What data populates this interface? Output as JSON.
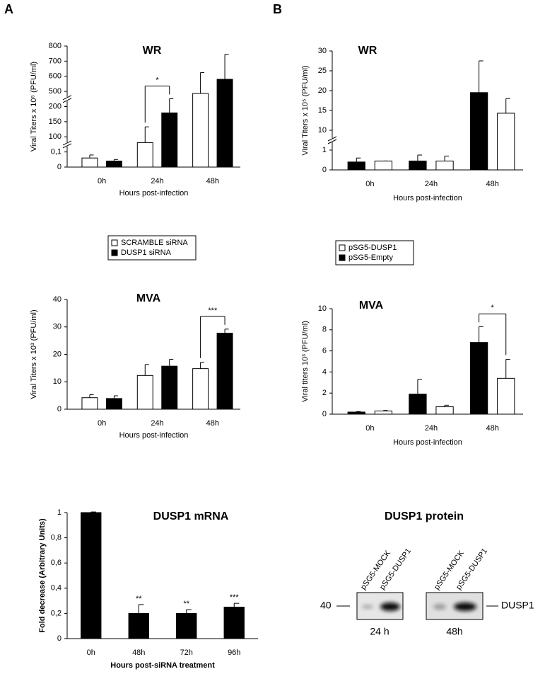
{
  "panels": [
    "A",
    "B"
  ],
  "chart_data": [
    {
      "type": "bar",
      "title": "WR",
      "ylabel": "Viral Titers x 10⁵ (PFU/ml)",
      "xlabel": "Hours post-infection",
      "categories": [
        "0h",
        "24h",
        "48h"
      ],
      "series": [
        {
          "name": "SCRAMBLE siRNA",
          "color": "#ffffff",
          "values": [
            0.06,
            62,
            460
          ],
          "errors": [
            0.02,
            71,
            165
          ]
        },
        {
          "name": "DUSP1 siRNA",
          "color": "#000000",
          "values": [
            0.04,
            179,
            580
          ],
          "errors": [
            0.01,
            176,
            165
          ]
        }
      ],
      "ylim": [
        0,
        800
      ],
      "yticks": [
        0,
        {
          "value": 0.1,
          "label": "0,1"
        },
        100,
        150,
        200,
        500,
        600,
        700,
        800
      ],
      "axis_breaks": [
        [
          0.1,
          100
        ],
        [
          200,
          500
        ]
      ],
      "legend": "below",
      "annotations": [
        {
          "text": "*",
          "category": "24h"
        }
      ]
    },
    {
      "type": "bar",
      "title": "WR",
      "ylabel": "Viral Titers x 10⁵ (PFU/ml)",
      "xlabel": "Hours post-infection",
      "categories": [
        "0h",
        "24h",
        "48h"
      ],
      "series": [
        {
          "name": "pSG5-Empty",
          "color": "#000000",
          "values": [
            0.4,
            0.45,
            19.5
          ],
          "errors": [
            0.2,
            0.3,
            8
          ]
        },
        {
          "name": "pSG5-DUSP1",
          "color": "#ffffff",
          "values": [
            0.45,
            0.45,
            14.3
          ],
          "errors": [
            0,
            0.25,
            3.7
          ]
        }
      ],
      "ylim": [
        0,
        30
      ],
      "yticks": [
        0,
        1,
        10,
        15,
        20,
        25,
        30
      ],
      "axis_breaks": [
        [
          1,
          10
        ]
      ],
      "legend": "below",
      "legend_order": "reverse"
    },
    {
      "type": "bar",
      "title": "MVA",
      "ylabel": "Viral Titers x 10³ (PFU/ml)",
      "xlabel": "Hours post-infection",
      "categories": [
        "0h",
        "24h",
        "48h"
      ],
      "series": [
        {
          "color": "#ffffff",
          "values": [
            4.2,
            12.3,
            14.8
          ],
          "errors": [
            1.1,
            4,
            2.3
          ]
        },
        {
          "color": "#000000",
          "values": [
            3.9,
            15.7,
            27.7
          ],
          "errors": [
            1,
            2.5,
            1.5
          ]
        }
      ],
      "ylim": [
        0,
        40
      ],
      "yticks": [
        0,
        10,
        20,
        30,
        40
      ],
      "annotations": [
        {
          "text": "***",
          "category": "48h"
        }
      ]
    },
    {
      "type": "bar",
      "title": "MVA",
      "ylabel": "Viral titers 10³ (PFU/ml)",
      "xlabel": "Hours post-infection",
      "categories": [
        "0h",
        "24h",
        "48h"
      ],
      "series": [
        {
          "color": "#000000",
          "values": [
            0.2,
            1.9,
            6.8
          ],
          "errors": [
            0.05,
            1.4,
            1.5
          ]
        },
        {
          "color": "#ffffff",
          "values": [
            0.3,
            0.7,
            3.4
          ],
          "errors": [
            0.05,
            0.15,
            1.8
          ]
        }
      ],
      "ylim": [
        0,
        10
      ],
      "yticks": [
        0,
        2,
        4,
        6,
        8,
        10
      ],
      "annotations": [
        {
          "text": "*",
          "category": "48h"
        }
      ]
    },
    {
      "type": "bar",
      "title": "DUSP1 mRNA",
      "ylabel": "Fold decrease (Arbitrary Units)",
      "xlabel": "Hours post-siRNA treatment",
      "categories": [
        "0h",
        "48h",
        "72h",
        "96h"
      ],
      "series": [
        {
          "color": "#000000",
          "values": [
            1,
            0.2,
            0.2,
            0.25
          ],
          "errors": [
            0.005,
            0.07,
            0.03,
            0.03
          ]
        }
      ],
      "ylim": [
        0,
        1
      ],
      "yticks": [
        0,
        {
          "value": 0.2,
          "label": "0,2"
        },
        {
          "value": 0.4,
          "label": "0,4"
        },
        {
          "value": 0.6,
          "label": "0,6"
        },
        {
          "value": 0.8,
          "label": "0,8"
        },
        1
      ],
      "significance": [
        null,
        "**",
        "**",
        "***"
      ]
    }
  ],
  "blot": {
    "title": "DUSP1 protein",
    "lanes": [
      "pSG5-MOCK",
      "pSG5-DUSP1",
      "pSG5-MOCK",
      "pSG5-DUSP1"
    ],
    "marker": "40",
    "band": "DUSP1",
    "times": [
      "24 h",
      "48h"
    ]
  }
}
